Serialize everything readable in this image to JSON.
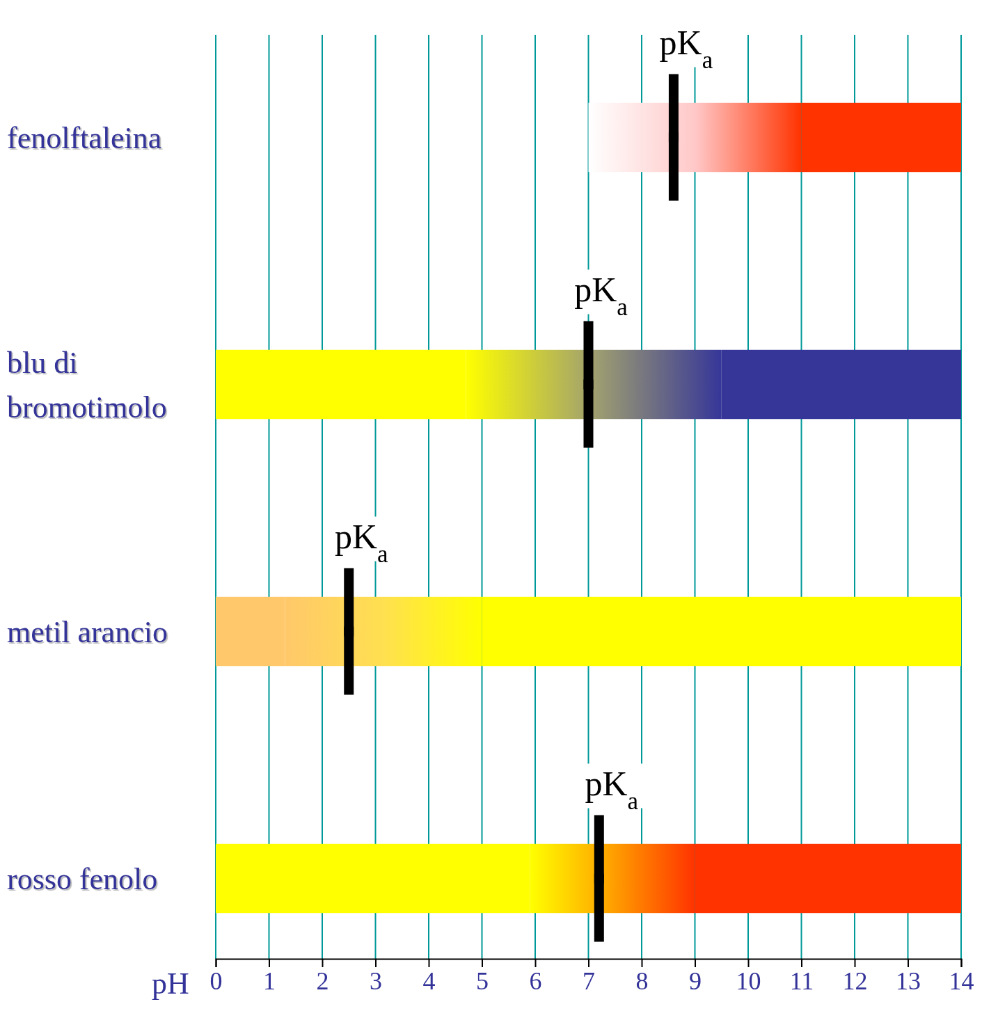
{
  "chart_data": {
    "type": "bar",
    "orientation": "horizontal",
    "categories": [
      "fenolftaleina",
      "blu di bromotimolo",
      "metil arancio",
      "rosso fenolo"
    ],
    "series": [
      {
        "colors": [
          "#ffffff",
          "#ffff00",
          "#ffc86a",
          "#ffff00"
        ],
        "base": [
          null,
          0,
          0,
          0
        ],
        "values": [
          null,
          4.7,
          1.3,
          5.9
        ]
      },
      {
        "colors": [
          "#ffc8c8",
          "#a0a070",
          "#ffe050",
          "#ffa000"
        ],
        "base": [
          7,
          4.7,
          1.3,
          5.9
        ],
        "values": [
          4,
          4.8,
          3.7,
          3.1
        ]
      },
      {
        "colors": [
          "#ff3300",
          "#363699",
          "#ffff00",
          "#ff3300"
        ],
        "base": [
          11,
          9.5,
          5,
          9
        ],
        "values": [
          3,
          4.5,
          9,
          5
        ]
      },
      {
        "type": "scatter",
        "color": "#000000",
        "marker": "square",
        "values": [
          8.6,
          7.0,
          2.5,
          7.2
        ]
      }
    ],
    "xlim": [
      0,
      14
    ],
    "xticks": [
      0,
      1,
      2,
      3,
      4,
      5,
      6,
      7,
      8,
      9,
      10,
      11,
      12,
      13,
      14
    ],
    "xlabel": "pH",
    "grid": "x",
    "annotations": [
      "pK$_{a}$",
      "pK$_{a}$",
      "pK$_{a}$",
      "pK$_{a}$"
    ]
  }
}
